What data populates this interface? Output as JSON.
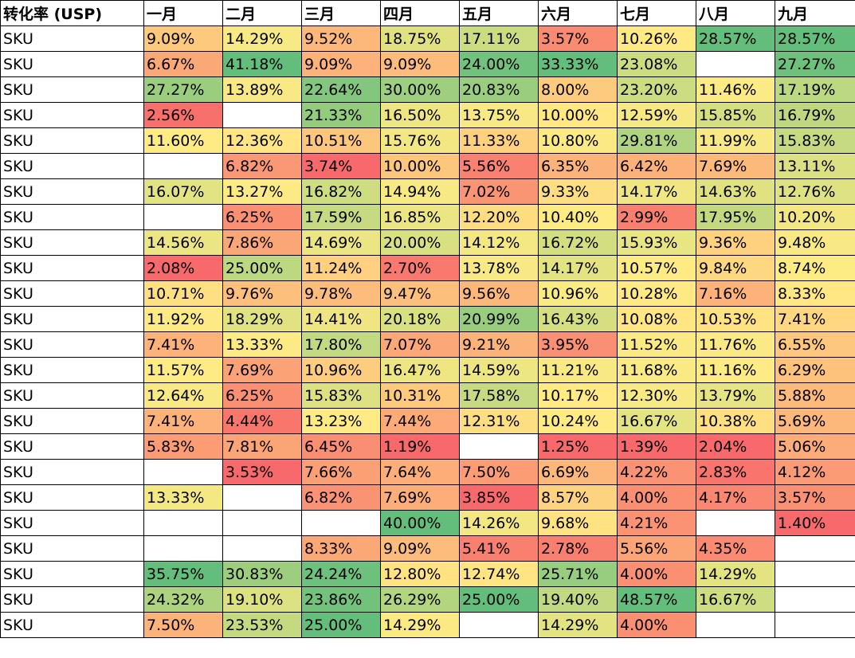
{
  "table": {
    "corner_header": "转化率 (USP)",
    "months": [
      "一月",
      "二月",
      "三月",
      "四月",
      "五月",
      "六月",
      "七月",
      "八月",
      "九月"
    ],
    "rows": [
      {
        "label": "SKU",
        "values": [
          "9.09%",
          "14.29%",
          "9.52%",
          "18.75%",
          "17.11%",
          "3.57%",
          "10.26%",
          "28.57%",
          "28.57%"
        ]
      },
      {
        "label": "SKU",
        "values": [
          "6.67%",
          "41.18%",
          "9.09%",
          "9.09%",
          "24.00%",
          "33.33%",
          "23.08%",
          "",
          "27.27%"
        ]
      },
      {
        "label": "SKU",
        "values": [
          "27.27%",
          "13.89%",
          "22.64%",
          "30.00%",
          "20.83%",
          "8.00%",
          "23.20%",
          "11.46%",
          "17.19%"
        ]
      },
      {
        "label": "SKU",
        "values": [
          "2.56%",
          "",
          "21.33%",
          "16.50%",
          "13.75%",
          "10.00%",
          "12.59%",
          "15.85%",
          "16.79%"
        ]
      },
      {
        "label": "SKU",
        "values": [
          "11.60%",
          "12.36%",
          "10.51%",
          "15.76%",
          "11.33%",
          "10.80%",
          "29.81%",
          "11.99%",
          "15.83%"
        ]
      },
      {
        "label": "SKU",
        "values": [
          "",
          "6.82%",
          "3.74%",
          "10.00%",
          "5.56%",
          "6.35%",
          "6.42%",
          "7.69%",
          "13.11%"
        ]
      },
      {
        "label": "SKU",
        "values": [
          "16.07%",
          "13.27%",
          "16.82%",
          "14.94%",
          "7.02%",
          "9.33%",
          "14.17%",
          "14.63%",
          "12.76%"
        ]
      },
      {
        "label": "SKU",
        "values": [
          "",
          "6.25%",
          "17.59%",
          "16.85%",
          "12.20%",
          "10.40%",
          "2.99%",
          "17.95%",
          "10.20%"
        ]
      },
      {
        "label": "SKU",
        "values": [
          "14.56%",
          "7.86%",
          "14.69%",
          "20.00%",
          "14.12%",
          "16.72%",
          "15.93%",
          "9.36%",
          "9.48%"
        ]
      },
      {
        "label": "SKU",
        "values": [
          "2.08%",
          "25.00%",
          "11.24%",
          "2.70%",
          "13.78%",
          "14.17%",
          "10.57%",
          "9.84%",
          "8.74%"
        ]
      },
      {
        "label": "SKU",
        "values": [
          "10.71%",
          "9.76%",
          "9.78%",
          "9.47%",
          "9.56%",
          "10.96%",
          "10.28%",
          "7.16%",
          "8.33%"
        ]
      },
      {
        "label": "SKU",
        "values": [
          "11.92%",
          "18.29%",
          "14.41%",
          "20.18%",
          "20.99%",
          "16.43%",
          "10.08%",
          "10.53%",
          "7.41%"
        ]
      },
      {
        "label": "SKU",
        "values": [
          "7.41%",
          "13.33%",
          "17.80%",
          "7.07%",
          "9.21%",
          "3.95%",
          "11.52%",
          "11.76%",
          "6.55%"
        ]
      },
      {
        "label": "SKU",
        "values": [
          "11.57%",
          "7.69%",
          "10.96%",
          "16.47%",
          "14.59%",
          "11.21%",
          "11.68%",
          "11.16%",
          "6.29%"
        ]
      },
      {
        "label": "SKU",
        "values": [
          "12.64%",
          "6.25%",
          "15.83%",
          "10.31%",
          "17.58%",
          "10.17%",
          "12.30%",
          "13.79%",
          "5.88%"
        ]
      },
      {
        "label": "SKU",
        "values": [
          "7.41%",
          "4.44%",
          "13.23%",
          "7.44%",
          "12.31%",
          "10.24%",
          "16.67%",
          "10.38%",
          "5.69%"
        ]
      },
      {
        "label": "SKU",
        "values": [
          "5.83%",
          "7.81%",
          "6.45%",
          "1.19%",
          "",
          "1.25%",
          "1.39%",
          "2.04%",
          "5.06%"
        ]
      },
      {
        "label": "SKU",
        "values": [
          "",
          "3.53%",
          "7.66%",
          "7.64%",
          "7.50%",
          "6.69%",
          "4.22%",
          "2.83%",
          "4.12%"
        ]
      },
      {
        "label": "SKU",
        "values": [
          "13.33%",
          "",
          "6.82%",
          "7.69%",
          "3.85%",
          "8.57%",
          "4.00%",
          "4.17%",
          "3.57%"
        ]
      },
      {
        "label": "SKU",
        "values": [
          "",
          "",
          "",
          "40.00%",
          "14.26%",
          "9.68%",
          "4.21%",
          "",
          "1.40%"
        ]
      },
      {
        "label": "SKU",
        "values": [
          "",
          "",
          "8.33%",
          "9.09%",
          "5.41%",
          "2.78%",
          "5.56%",
          "4.35%",
          ""
        ]
      },
      {
        "label": "SKU",
        "values": [
          "35.75%",
          "30.83%",
          "24.24%",
          "12.80%",
          "12.74%",
          "25.71%",
          "4.00%",
          "14.29%",
          ""
        ]
      },
      {
        "label": "SKU",
        "values": [
          "24.32%",
          "19.10%",
          "23.86%",
          "26.29%",
          "25.00%",
          "19.40%",
          "48.57%",
          "16.67%",
          ""
        ]
      },
      {
        "label": "SKU",
        "values": [
          "7.50%",
          "23.53%",
          "25.00%",
          "14.29%",
          "",
          "14.29%",
          "4.00%",
          "",
          ""
        ]
      }
    ],
    "colors": {
      "low": "#f8696b",
      "mid": "#ffeb84",
      "high": "#63be7b",
      "empty": "#ffffff"
    }
  }
}
